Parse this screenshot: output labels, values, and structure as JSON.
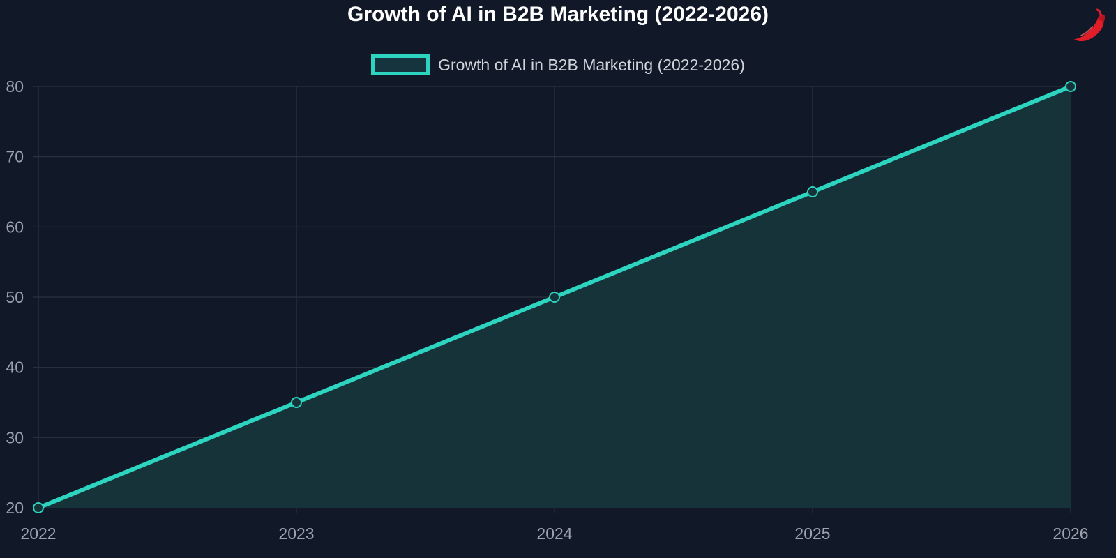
{
  "colors": {
    "background": "#111827",
    "line": "#2dd4bf",
    "area_fill": "#153339",
    "grid": "#2b3340",
    "tick_text": "#9ca3af",
    "title_text": "#ffffff",
    "legend_text": "#d1d5db",
    "brand_icon": "#e11d2a"
  },
  "brand_icon": "chili-pepper-icon",
  "chart_data": {
    "type": "area",
    "title": "Growth of AI in B2B Marketing (2022-2026)",
    "xlabel": "",
    "ylabel": "",
    "categories": [
      "2022",
      "2023",
      "2024",
      "2025",
      "2026"
    ],
    "series": [
      {
        "name": "Growth of AI in B2B Marketing (2022-2026)",
        "values": [
          20,
          35,
          50,
          65,
          80
        ]
      }
    ],
    "ylim": [
      20,
      80
    ],
    "yticks": [
      "20",
      "30",
      "40",
      "50",
      "60",
      "70",
      "80"
    ],
    "grid": true,
    "legend_position": "top-center",
    "markers": "hollow-circle"
  }
}
